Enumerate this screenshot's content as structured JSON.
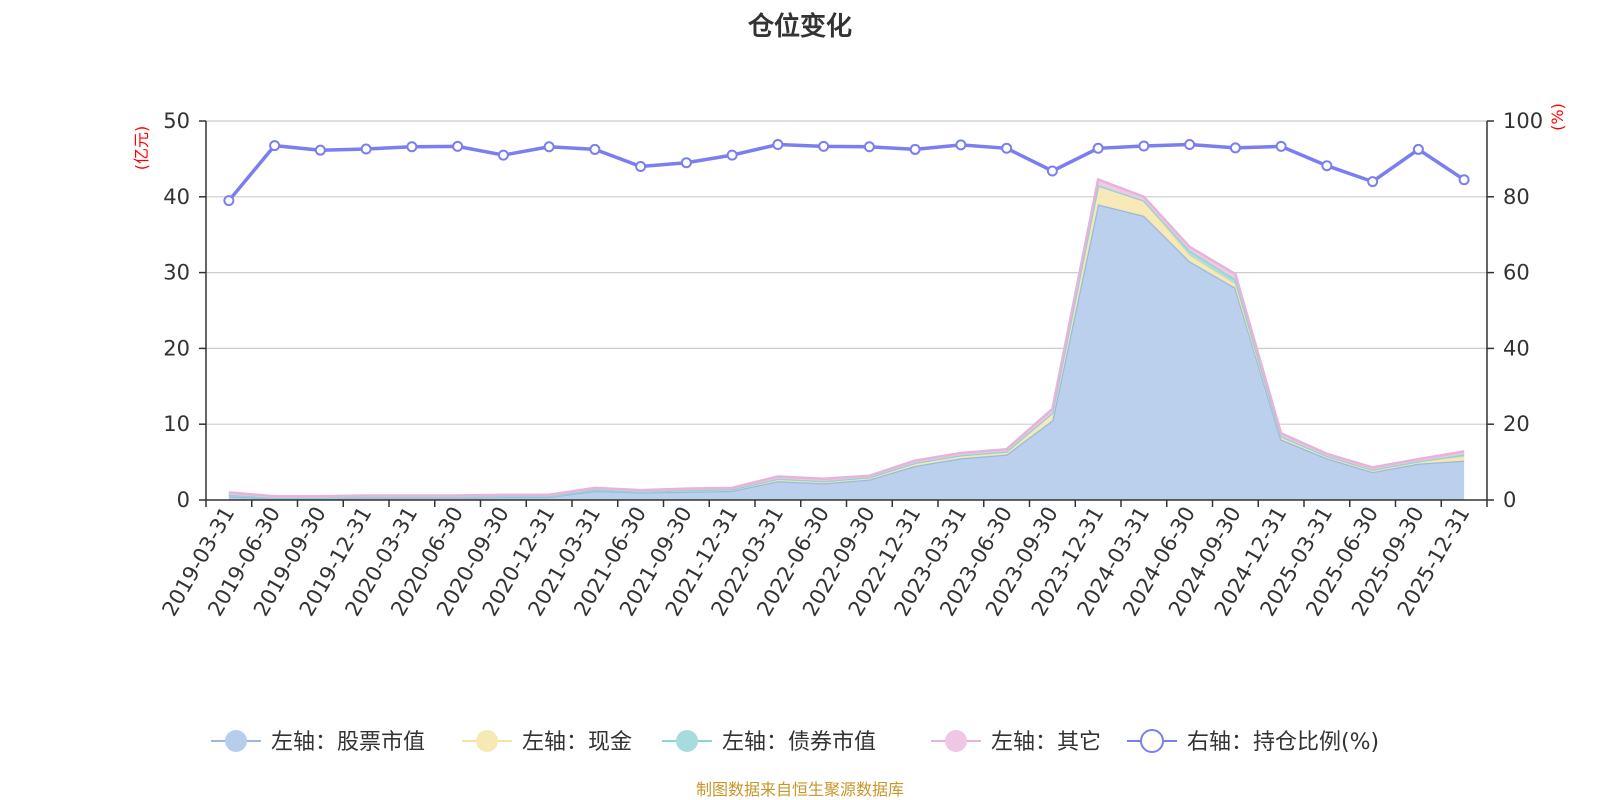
{
  "source_note": "制图数据来自恒生聚源数据库",
  "chart_data": {
    "type": "area",
    "title": "仓位变化",
    "left_axis_unit": "(亿元)",
    "right_axis_unit": "(%)",
    "left_ylim": [
      0,
      50
    ],
    "left_yticks": [
      0,
      10,
      20,
      30,
      40,
      50
    ],
    "right_ylim": [
      0,
      100
    ],
    "right_yticks": [
      0,
      20,
      40,
      60,
      80,
      100
    ],
    "grid": true,
    "legend_position": "bottom",
    "categories": [
      "2019-03-31",
      "2019-06-30",
      "2019-09-30",
      "2019-12-31",
      "2020-03-31",
      "2020-06-30",
      "2020-09-30",
      "2020-12-31",
      "2021-03-31",
      "2021-06-30",
      "2021-09-30",
      "2021-12-31",
      "2022-03-31",
      "2022-06-30",
      "2022-09-30",
      "2022-12-31",
      "2023-03-31",
      "2023-06-30",
      "2023-09-30",
      "2023-12-31",
      "2024-03-31",
      "2024-06-30",
      "2024-09-30",
      "2024-12-31",
      "2025-03-31",
      "2025-06-30",
      "2025-09-30",
      "2025-12-31"
    ],
    "series": [
      {
        "name": "左轴：股票市值",
        "axis": "left",
        "stack": true,
        "color": "#9cb8e0",
        "fill": "#b6cdeb",
        "values": [
          0.5,
          0.2,
          0.2,
          0.3,
          0.3,
          0.3,
          0.4,
          0.4,
          1.2,
          1.0,
          1.1,
          1.2,
          2.5,
          2.2,
          2.7,
          4.5,
          5.5,
          6.0,
          10.5,
          39.0,
          37.5,
          31.5,
          28.0,
          8.0,
          5.5,
          3.7,
          4.8,
          5.2
        ]
      },
      {
        "name": "左轴：现金",
        "axis": "left",
        "stack": true,
        "color": "#f5e3a0",
        "fill": "#f7e9b4",
        "values": [
          0.2,
          0.1,
          0.1,
          0.1,
          0.1,
          0.1,
          0.1,
          0.1,
          0.2,
          0.1,
          0.2,
          0.2,
          0.3,
          0.3,
          0.3,
          0.4,
          0.4,
          0.4,
          1.0,
          2.5,
          2.0,
          0.8,
          0.5,
          0.4,
          0.3,
          0.3,
          0.3,
          0.5
        ]
      },
      {
        "name": "左轴：债券市值",
        "axis": "left",
        "stack": true,
        "color": "#8fd3d3",
        "fill": "#a8dcdc",
        "values": [
          0.0,
          0.0,
          0.0,
          0.0,
          0.0,
          0.0,
          0.0,
          0.0,
          0.0,
          0.0,
          0.0,
          0.0,
          0.0,
          0.0,
          0.0,
          0.0,
          0.0,
          0.0,
          0.0,
          0.0,
          0.0,
          0.6,
          0.6,
          0.0,
          0.0,
          0.0,
          0.0,
          0.3
        ]
      },
      {
        "name": "左轴：其它",
        "axis": "left",
        "stack": true,
        "color": "#e6b3da",
        "fill": "#efc7e4",
        "values": [
          0.3,
          0.2,
          0.2,
          0.2,
          0.2,
          0.2,
          0.2,
          0.2,
          0.2,
          0.2,
          0.2,
          0.2,
          0.3,
          0.3,
          0.2,
          0.3,
          0.3,
          0.3,
          0.5,
          0.8,
          0.5,
          0.5,
          0.7,
          0.4,
          0.3,
          0.3,
          0.3,
          0.4
        ]
      },
      {
        "name": "右轴：持仓比例(%)",
        "axis": "right",
        "stack": false,
        "color": "#7a7ef0",
        "values": [
          79.0,
          93.5,
          92.3,
          92.6,
          93.2,
          93.3,
          91.0,
          93.2,
          92.5,
          88.0,
          89.0,
          91.0,
          93.8,
          93.3,
          93.2,
          92.5,
          93.7,
          92.8,
          86.8,
          92.8,
          93.4,
          93.8,
          92.9,
          93.3,
          88.2,
          84.0,
          92.5,
          84.5
        ]
      }
    ]
  }
}
